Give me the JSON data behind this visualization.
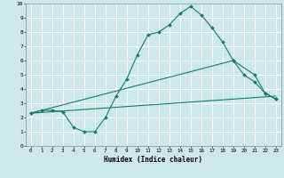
{
  "xlabel": "Humidex (Indice chaleur)",
  "xlim": [
    -0.5,
    23.5
  ],
  "ylim": [
    0,
    10
  ],
  "xticks": [
    0,
    1,
    2,
    3,
    4,
    5,
    6,
    7,
    8,
    9,
    10,
    11,
    12,
    13,
    14,
    15,
    16,
    17,
    18,
    19,
    20,
    21,
    22,
    23
  ],
  "yticks": [
    0,
    1,
    2,
    3,
    4,
    5,
    6,
    7,
    8,
    9,
    10
  ],
  "bg_color": "#cce8e8",
  "grid_color": "#ffffff",
  "line_color": "#1a7a6a",
  "line1_x": [
    0,
    1,
    2,
    3,
    4,
    5,
    6,
    7,
    8,
    9,
    10,
    11,
    12,
    13,
    14,
    15,
    16,
    17,
    18,
    19,
    20,
    21,
    22,
    23
  ],
  "line1_y": [
    2.3,
    2.5,
    2.5,
    2.4,
    1.3,
    1.0,
    1.0,
    2.0,
    3.5,
    4.7,
    6.4,
    7.8,
    8.0,
    8.5,
    9.3,
    9.8,
    9.2,
    8.3,
    7.3,
    6.0,
    5.0,
    4.5,
    3.7,
    3.3
  ],
  "line2_x": [
    0,
    23
  ],
  "line2_y": [
    2.3,
    3.5
  ],
  "line3_x": [
    0,
    19,
    21,
    22,
    23
  ],
  "line3_y": [
    2.3,
    6.0,
    5.0,
    3.7,
    3.3
  ]
}
